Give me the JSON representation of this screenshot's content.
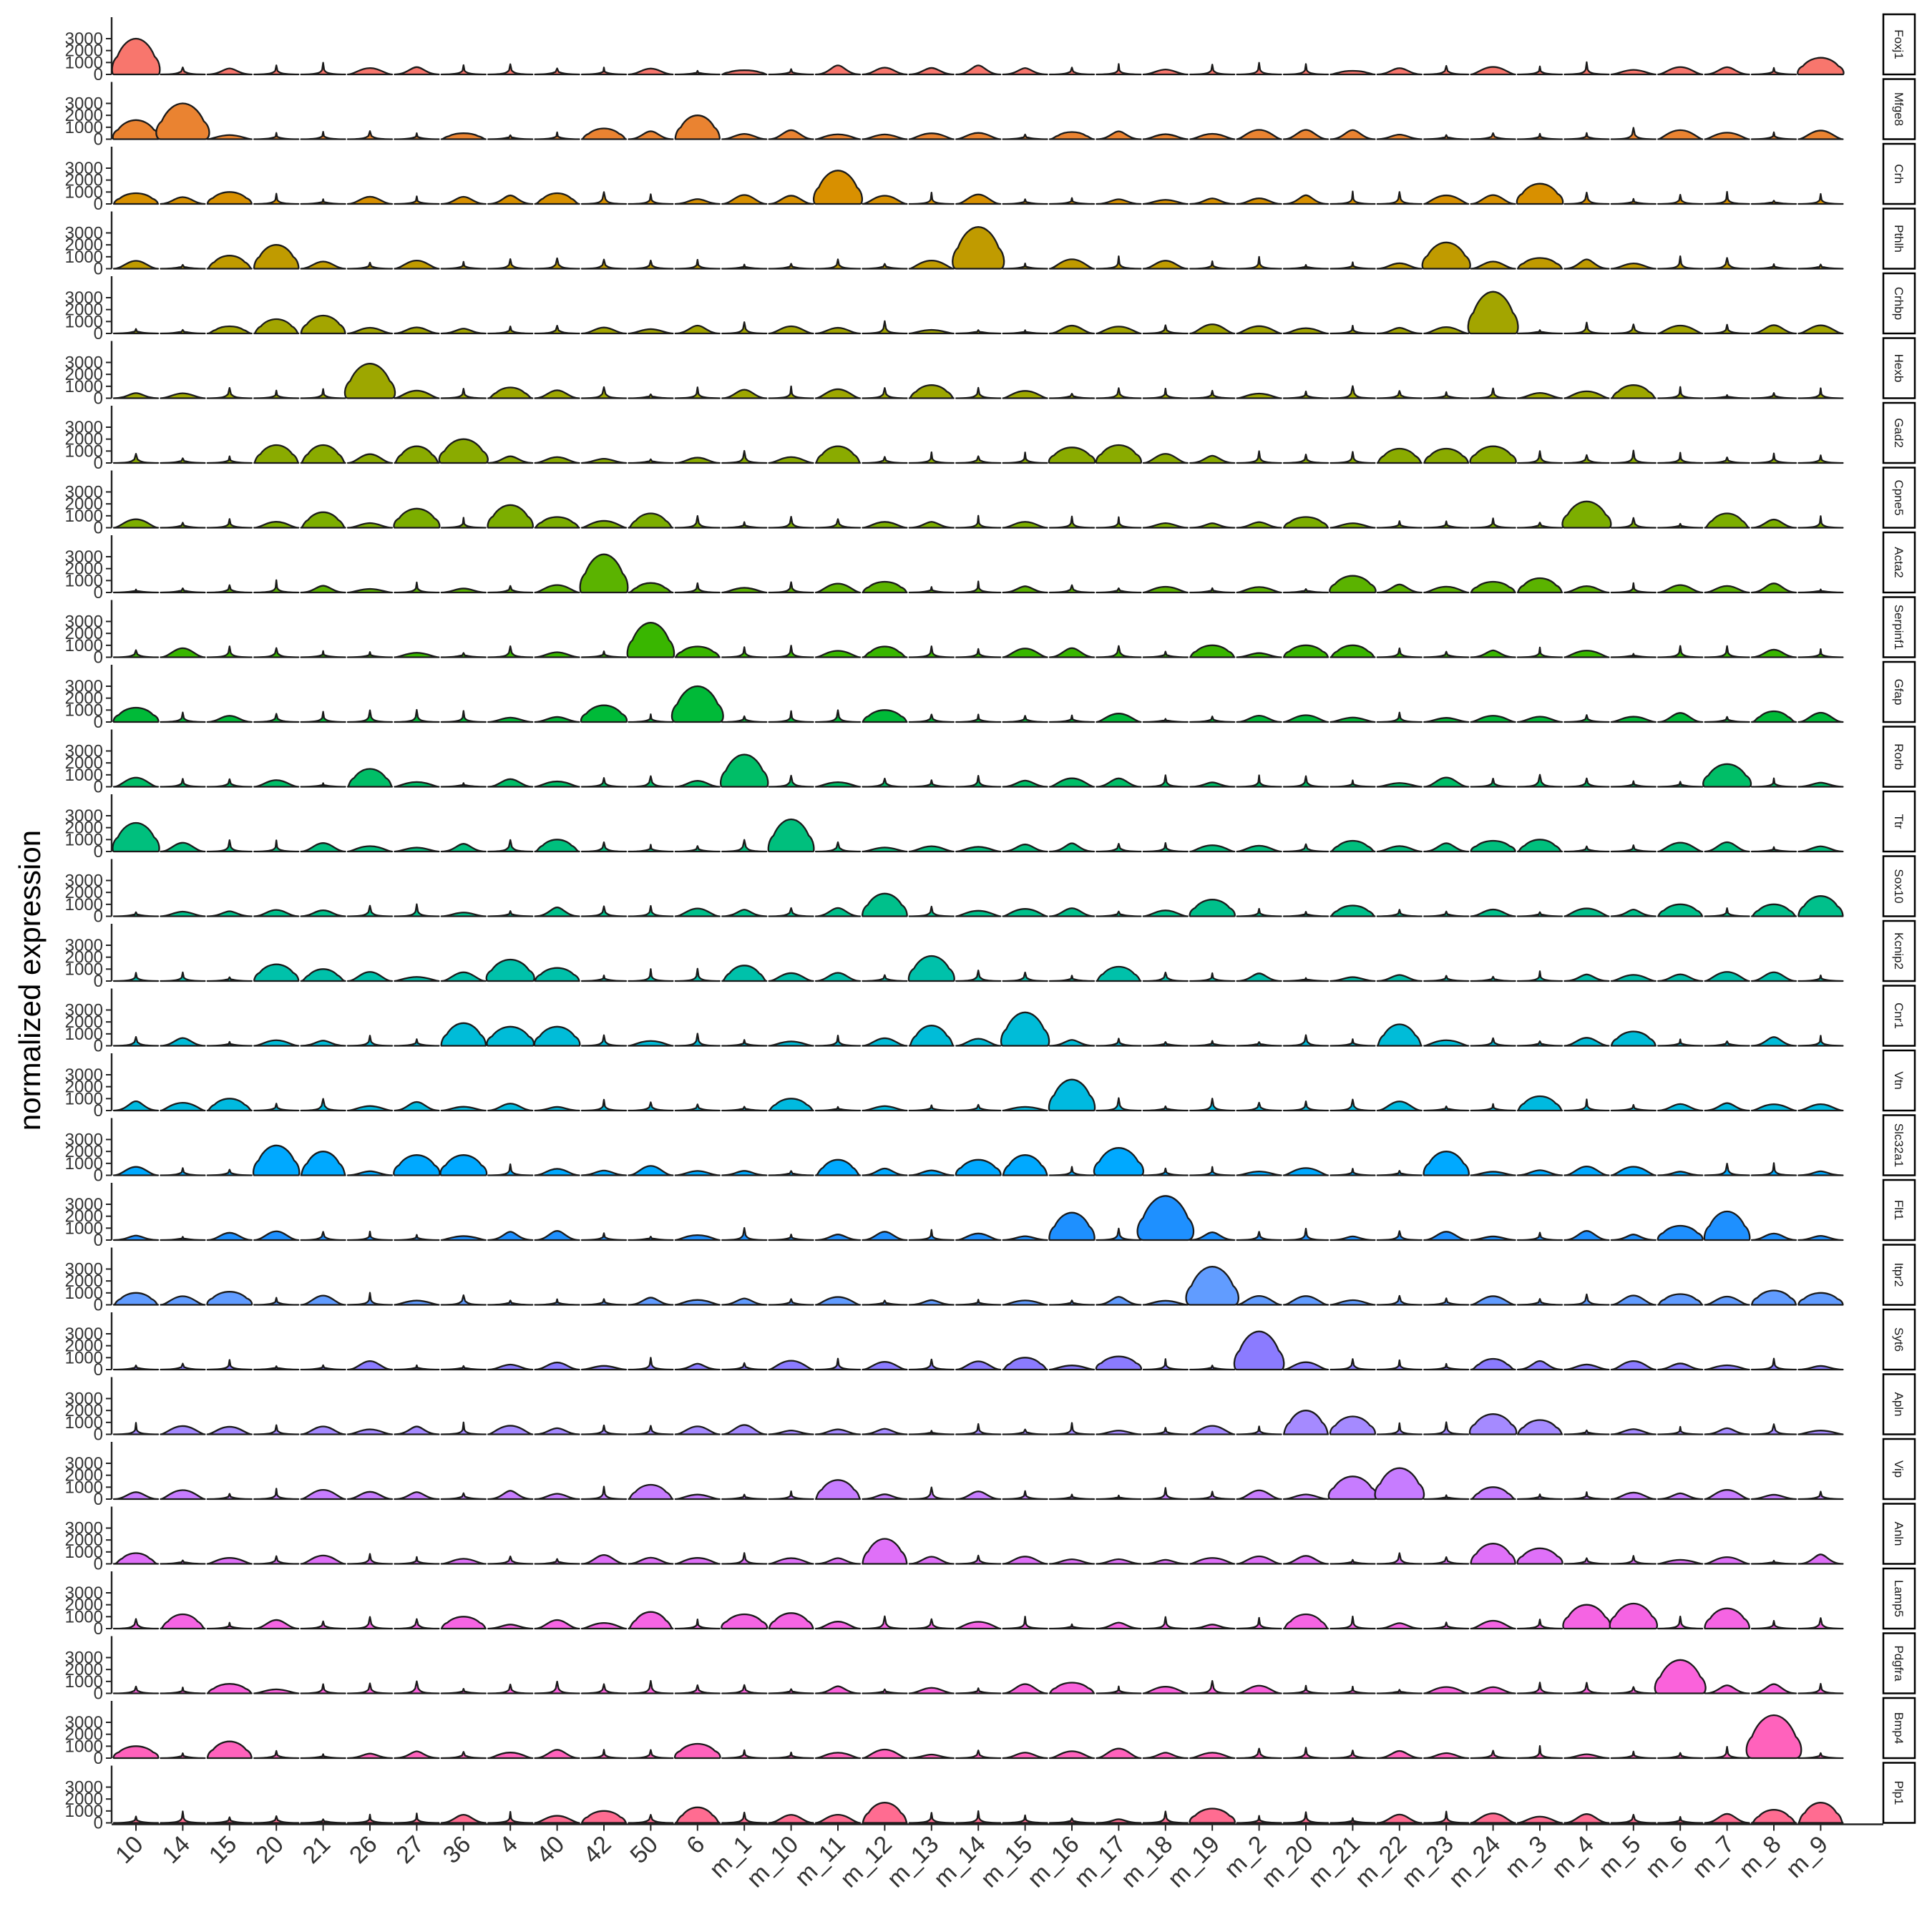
{
  "chart_data": {
    "type": "stacked-violin",
    "ylabel": "normalized expression",
    "xlabel": "",
    "y_ticks": [
      "0",
      "1000",
      "2000",
      "3000"
    ],
    "ylim": [
      0,
      4200
    ],
    "grid": false,
    "legend": "none",
    "categories": [
      "10",
      "14",
      "15",
      "20",
      "21",
      "26",
      "27",
      "36",
      "4",
      "40",
      "42",
      "50",
      "6",
      "m_1",
      "m_10",
      "m_11",
      "m_12",
      "m_13",
      "m_14",
      "m_15",
      "m_16",
      "m_17",
      "m_18",
      "m_19",
      "m_2",
      "m_20",
      "m_21",
      "m_22",
      "m_23",
      "m_24",
      "m_3",
      "m_4",
      "m_5",
      "m_6",
      "m_7",
      "m_8",
      "m_9"
    ],
    "genes": [
      {
        "name": "Foxj1",
        "color": "#F8766D",
        "peaks": [
          [
            0,
            3000
          ],
          [
            36,
            1400
          ],
          [
            13,
            350
          ],
          [
            26,
            300
          ]
        ]
      },
      {
        "name": "Mfge8",
        "color": "#EA8331",
        "peaks": [
          [
            1,
            3000
          ],
          [
            12,
            2000
          ],
          [
            0,
            1600
          ],
          [
            10,
            900
          ],
          [
            7,
            500
          ],
          [
            20,
            600
          ]
        ]
      },
      {
        "name": "Crh",
        "color": "#D89000",
        "peaks": [
          [
            15,
            2800
          ],
          [
            30,
            1700
          ],
          [
            2,
            1000
          ],
          [
            0,
            900
          ],
          [
            9,
            900
          ]
        ]
      },
      {
        "name": "Pthlh",
        "color": "#C09B00",
        "peaks": [
          [
            18,
            3500
          ],
          [
            28,
            2200
          ],
          [
            3,
            2000
          ],
          [
            2,
            1100
          ],
          [
            30,
            900
          ]
        ]
      },
      {
        "name": "Crhbp",
        "color": "#A3A500",
        "peaks": [
          [
            29,
            3500
          ],
          [
            4,
            1500
          ],
          [
            3,
            1200
          ],
          [
            2,
            600
          ]
        ]
      },
      {
        "name": "Hexb",
        "color": "#9DA700",
        "peaks": [
          [
            5,
            2900
          ],
          [
            17,
            1100
          ],
          [
            32,
            1100
          ],
          [
            8,
            900
          ]
        ]
      },
      {
        "name": "Gad2",
        "color": "#8AAB00",
        "peaks": [
          [
            7,
            2000
          ],
          [
            3,
            1500
          ],
          [
            4,
            1500
          ],
          [
            6,
            1400
          ],
          [
            21,
            1500
          ],
          [
            20,
            1300
          ],
          [
            27,
            1200
          ],
          [
            28,
            1200
          ],
          [
            29,
            1400
          ],
          [
            15,
            1400
          ]
        ]
      },
      {
        "name": "Cpne5",
        "color": "#7CAE00",
        "peaks": [
          [
            31,
            2200
          ],
          [
            8,
            1900
          ],
          [
            6,
            1600
          ],
          [
            11,
            1200
          ],
          [
            9,
            900
          ],
          [
            4,
            1300
          ],
          [
            25,
            900
          ],
          [
            34,
            1200
          ]
        ]
      },
      {
        "name": "Acta2",
        "color": "#5BB300",
        "peaks": [
          [
            10,
            3200
          ],
          [
            26,
            1400
          ],
          [
            30,
            1200
          ],
          [
            29,
            900
          ],
          [
            16,
            900
          ],
          [
            11,
            800
          ]
        ]
      },
      {
        "name": "Serpinf1",
        "color": "#39B600",
        "peaks": [
          [
            11,
            2900
          ],
          [
            23,
            1000
          ],
          [
            25,
            1000
          ],
          [
            26,
            1000
          ],
          [
            16,
            900
          ],
          [
            12,
            900
          ]
        ]
      },
      {
        "name": "Gfap",
        "color": "#00BA38",
        "peaks": [
          [
            12,
            3000
          ],
          [
            10,
            1400
          ],
          [
            0,
            1200
          ],
          [
            16,
            1000
          ],
          [
            35,
            900
          ]
        ]
      },
      {
        "name": "Rorb",
        "color": "#00BE67",
        "peaks": [
          [
            13,
            2700
          ],
          [
            34,
            1900
          ],
          [
            5,
            1500
          ]
        ]
      },
      {
        "name": "Ttr",
        "color": "#00BF7D",
        "peaks": [
          [
            14,
            2700
          ],
          [
            0,
            2400
          ],
          [
            9,
            1000
          ],
          [
            26,
            900
          ],
          [
            29,
            900
          ],
          [
            30,
            1000
          ]
        ]
      },
      {
        "name": "Sox10",
        "color": "#00C08B",
        "peaks": [
          [
            16,
            1900
          ],
          [
            23,
            1400
          ],
          [
            36,
            1700
          ],
          [
            33,
            1000
          ],
          [
            35,
            1000
          ],
          [
            26,
            900
          ]
        ]
      },
      {
        "name": "Kcnip2",
        "color": "#00C1AA",
        "peaks": [
          [
            17,
            2100
          ],
          [
            8,
            1800
          ],
          [
            3,
            1400
          ],
          [
            13,
            1300
          ],
          [
            21,
            1200
          ],
          [
            4,
            1000
          ],
          [
            9,
            1100
          ]
        ]
      },
      {
        "name": "Cnr1",
        "color": "#00BCD8",
        "peaks": [
          [
            19,
            2800
          ],
          [
            7,
            1900
          ],
          [
            17,
            1700
          ],
          [
            27,
            1800
          ],
          [
            8,
            1600
          ],
          [
            9,
            1600
          ],
          [
            32,
            1200
          ]
        ]
      },
      {
        "name": "Vtn",
        "color": "#00BAE0",
        "peaks": [
          [
            20,
            2600
          ],
          [
            30,
            1200
          ],
          [
            14,
            1000
          ],
          [
            2,
            1000
          ]
        ]
      },
      {
        "name": "Slc32a1",
        "color": "#00A9FF",
        "peaks": [
          [
            3,
            2500
          ],
          [
            21,
            2300
          ],
          [
            4,
            2000
          ],
          [
            6,
            1700
          ],
          [
            7,
            1700
          ],
          [
            19,
            1700
          ],
          [
            28,
            2000
          ],
          [
            15,
            1300
          ],
          [
            18,
            1300
          ]
        ]
      },
      {
        "name": "Flt1",
        "color": "#1E90FF",
        "peaks": [
          [
            22,
            3700
          ],
          [
            34,
            2400
          ],
          [
            20,
            2300
          ],
          [
            33,
            1200
          ]
        ]
      },
      {
        "name": "Itpr2",
        "color": "#619CFF",
        "peaks": [
          [
            23,
            3200
          ],
          [
            35,
            1200
          ],
          [
            2,
            1100
          ],
          [
            36,
            1000
          ],
          [
            0,
            1000
          ],
          [
            33,
            900
          ]
        ]
      },
      {
        "name": "Syt6",
        "color": "#8B7BFF",
        "peaks": [
          [
            24,
            3200
          ],
          [
            29,
            900
          ],
          [
            19,
            1000
          ],
          [
            21,
            1100
          ]
        ]
      },
      {
        "name": "Apln",
        "color": "#A58AFF",
        "peaks": [
          [
            25,
            2000
          ],
          [
            26,
            1500
          ],
          [
            29,
            1700
          ],
          [
            30,
            1200
          ]
        ]
      },
      {
        "name": "Vip",
        "color": "#C77CFF",
        "peaks": [
          [
            27,
            2600
          ],
          [
            26,
            1900
          ],
          [
            15,
            1600
          ],
          [
            11,
            1200
          ],
          [
            29,
            1000
          ]
        ]
      },
      {
        "name": "Anln",
        "color": "#DF70F8",
        "peaks": [
          [
            16,
            2100
          ],
          [
            29,
            1700
          ],
          [
            30,
            1300
          ],
          [
            0,
            900
          ]
        ]
      },
      {
        "name": "Lamp5",
        "color": "#F564E3",
        "peaks": [
          [
            31,
            2000
          ],
          [
            32,
            2100
          ],
          [
            11,
            1400
          ],
          [
            14,
            1300
          ],
          [
            34,
            1700
          ],
          [
            1,
            1200
          ],
          [
            13,
            1200
          ],
          [
            25,
            1200
          ],
          [
            7,
            1000
          ]
        ]
      },
      {
        "name": "Pdgfra",
        "color": "#FA62DB",
        "peaks": [
          [
            33,
            2800
          ],
          [
            20,
            900
          ],
          [
            2,
            800
          ]
        ]
      },
      {
        "name": "Bmp4",
        "color": "#FF62BC",
        "peaks": [
          [
            35,
            3600
          ],
          [
            2,
            1400
          ],
          [
            0,
            1000
          ],
          [
            12,
            1200
          ]
        ]
      },
      {
        "name": "Plp1",
        "color": "#FF6C91",
        "peaks": [
          [
            16,
            1700
          ],
          [
            36,
            1700
          ],
          [
            23,
            1200
          ],
          [
            35,
            1100
          ],
          [
            12,
            1300
          ],
          [
            10,
            1000
          ]
        ]
      }
    ]
  }
}
